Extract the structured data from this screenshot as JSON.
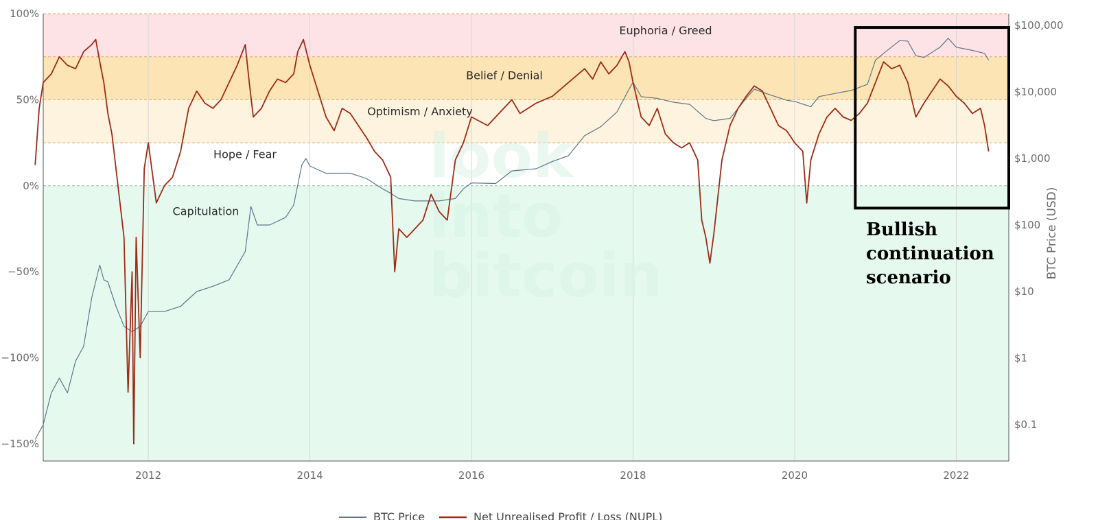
{
  "chart_data": {
    "type": "line",
    "x_ticks": [
      "2012",
      "2014",
      "2016",
      "2018",
      "2020",
      "2022"
    ],
    "y_left_ticks": [
      "100%",
      "50%",
      "0%",
      "−50%",
      "−100%",
      "−150%"
    ],
    "y_left_range": [
      -160,
      100
    ],
    "y_right_ticks": [
      "$100,000",
      "$10,000",
      "$1,000",
      "$100",
      "$10",
      "$1",
      "$0.1"
    ],
    "y_right_title": "BTC Price (USD)",
    "y_right_log": true,
    "zones": [
      {
        "label": "Euphoria / Greed",
        "from": 75,
        "to": 100,
        "color": "#fde3e6"
      },
      {
        "label": "Belief / Denial",
        "from": 50,
        "to": 75,
        "color": "#fde4b4"
      },
      {
        "label": "Optimism / Anxiety",
        "from": 25,
        "to": 50,
        "color": "#fef3de"
      },
      {
        "label": "Hope / Fear",
        "from": 0,
        "to": 25,
        "color": "#ffffff"
      },
      {
        "label": "Capitulation",
        "from": -160,
        "to": 0,
        "color": "#e6f9ef"
      }
    ],
    "series": [
      {
        "name": "BTC Price",
        "color": "#5f7688",
        "axis": "right",
        "x": [
          2010.6,
          2010.7,
          2010.8,
          2010.9,
          2011.0,
          2011.1,
          2011.2,
          2011.3,
          2011.4,
          2011.45,
          2011.5,
          2011.6,
          2011.7,
          2011.8,
          2011.9,
          2012.0,
          2012.2,
          2012.4,
          2012.6,
          2012.8,
          2013.0,
          2013.2,
          2013.27,
          2013.35,
          2013.5,
          2013.7,
          2013.8,
          2013.9,
          2013.95,
          2014.0,
          2014.2,
          2014.5,
          2014.7,
          2014.9,
          2015.0,
          2015.1,
          2015.3,
          2015.6,
          2015.8,
          2015.9,
          2016.0,
          2016.3,
          2016.5,
          2016.8,
          2017.0,
          2017.2,
          2017.4,
          2017.6,
          2017.8,
          2017.95,
          2018.0,
          2018.1,
          2018.3,
          2018.5,
          2018.7,
          2018.9,
          2019.0,
          2019.2,
          2019.4,
          2019.5,
          2019.7,
          2019.9,
          2020.0,
          2020.2,
          2020.3,
          2020.5,
          2020.7,
          2020.9,
          2021.0,
          2021.1,
          2021.3,
          2021.4,
          2021.5,
          2021.6,
          2021.8,
          2021.9,
          2022.0,
          2022.2,
          2022.35,
          2022.4
        ],
        "y": [
          0.06,
          0.1,
          0.3,
          0.5,
          0.3,
          0.9,
          1.5,
          8,
          25,
          15,
          14,
          6,
          3,
          2.5,
          3,
          5,
          5,
          6,
          10,
          12,
          15,
          40,
          190,
          100,
          100,
          130,
          200,
          800,
          1000,
          770,
          600,
          600,
          500,
          350,
          300,
          250,
          230,
          230,
          250,
          350,
          430,
          420,
          650,
          700,
          900,
          1100,
          2200,
          3000,
          5000,
          11000,
          14000,
          8500,
          8000,
          7000,
          6500,
          4000,
          3700,
          4000,
          8000,
          11000,
          9000,
          7500,
          7200,
          6000,
          8500,
          9500,
          10500,
          13000,
          30000,
          38000,
          59000,
          58000,
          35000,
          33000,
          47000,
          64000,
          47000,
          42000,
          38000,
          30000
        ]
      },
      {
        "name": "Net Unrealised Profit / Loss (NUPL)",
        "color": "#9e2a14",
        "axis": "left",
        "x": [
          2010.6,
          2010.65,
          2010.7,
          2010.8,
          2010.9,
          2011.0,
          2011.1,
          2011.2,
          2011.3,
          2011.35,
          2011.4,
          2011.45,
          2011.5,
          2011.55,
          2011.6,
          2011.7,
          2011.75,
          2011.8,
          2011.82,
          2011.85,
          2011.9,
          2011.95,
          2012.0,
          2012.1,
          2012.2,
          2012.3,
          2012.4,
          2012.5,
          2012.6,
          2012.7,
          2012.8,
          2012.9,
          2013.0,
          2013.1,
          2013.2,
          2013.25,
          2013.3,
          2013.4,
          2013.5,
          2013.6,
          2013.7,
          2013.8,
          2013.85,
          2013.92,
          2014.0,
          2014.1,
          2014.2,
          2014.3,
          2014.4,
          2014.5,
          2014.6,
          2014.7,
          2014.8,
          2014.9,
          2015.0,
          2015.05,
          2015.1,
          2015.2,
          2015.3,
          2015.4,
          2015.5,
          2015.6,
          2015.7,
          2015.8,
          2015.9,
          2016.0,
          2016.2,
          2016.4,
          2016.5,
          2016.6,
          2016.8,
          2017.0,
          2017.2,
          2017.4,
          2017.5,
          2017.6,
          2017.7,
          2017.8,
          2017.9,
          2017.95,
          2018.0,
          2018.1,
          2018.2,
          2018.3,
          2018.4,
          2018.5,
          2018.6,
          2018.7,
          2018.8,
          2018.85,
          2018.9,
          2018.95,
          2019.0,
          2019.1,
          2019.2,
          2019.3,
          2019.4,
          2019.5,
          2019.6,
          2019.7,
          2019.8,
          2019.9,
          2020.0,
          2020.1,
          2020.15,
          2020.2,
          2020.3,
          2020.4,
          2020.5,
          2020.6,
          2020.7,
          2020.8,
          2020.9,
          2021.0,
          2021.1,
          2021.2,
          2021.3,
          2021.4,
          2021.5,
          2021.6,
          2021.7,
          2021.8,
          2021.9,
          2022.0,
          2022.1,
          2022.2,
          2022.3,
          2022.35,
          2022.4
        ],
        "y": [
          12,
          45,
          60,
          65,
          75,
          70,
          68,
          78,
          82,
          85,
          72,
          60,
          42,
          30,
          10,
          -30,
          -120,
          -50,
          -150,
          -30,
          -100,
          10,
          25,
          -10,
          0,
          5,
          20,
          45,
          55,
          48,
          45,
          50,
          60,
          70,
          82,
          60,
          40,
          45,
          55,
          62,
          60,
          65,
          78,
          85,
          70,
          55,
          40,
          32,
          45,
          42,
          35,
          28,
          20,
          15,
          5,
          -50,
          -25,
          -30,
          -25,
          -20,
          -5,
          -15,
          -20,
          15,
          25,
          40,
          35,
          45,
          50,
          42,
          48,
          52,
          60,
          68,
          62,
          72,
          65,
          70,
          78,
          72,
          60,
          40,
          35,
          45,
          30,
          25,
          22,
          25,
          15,
          -20,
          -30,
          -45,
          -28,
          15,
          35,
          45,
          52,
          58,
          55,
          45,
          35,
          32,
          25,
          20,
          -10,
          15,
          30,
          40,
          45,
          40,
          38,
          42,
          48,
          60,
          72,
          68,
          70,
          60,
          40,
          48,
          55,
          62,
          58,
          52,
          48,
          42,
          45,
          35,
          20
        ]
      }
    ]
  },
  "watermark": [
    "look",
    "into",
    "bitcoin"
  ],
  "annotation": {
    "lines": [
      "Bullish",
      "continuation",
      "scenario"
    ],
    "box_from": 2020.75,
    "box_to": 2022.65,
    "box_top": 92,
    "box_bottom": -13
  }
}
